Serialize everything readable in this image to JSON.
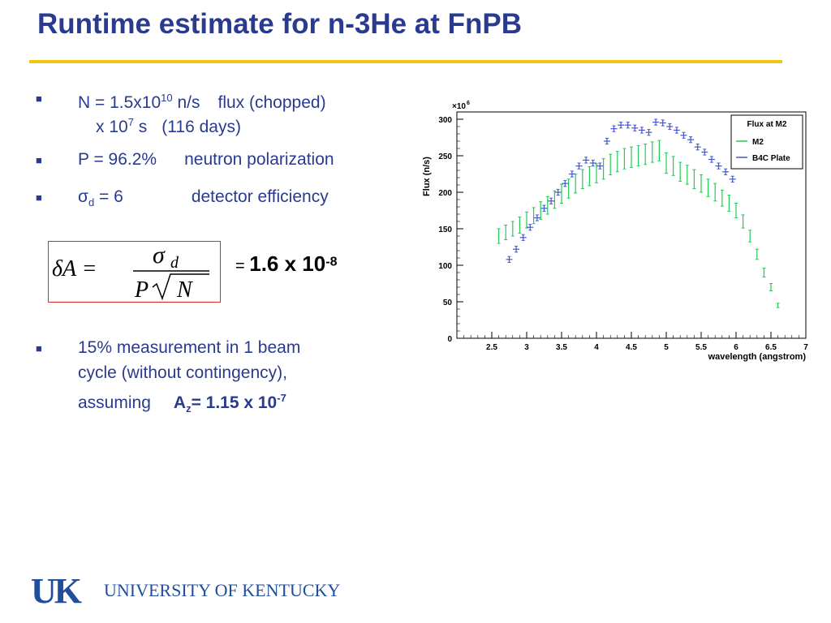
{
  "slide": {
    "title": "Runtime estimate for n-3He at FnPB"
  },
  "bullets": {
    "n_line1_prefix": "N = 1.5x10",
    "n_line1_exp": "10",
    "n_line1_suffix": " n/s",
    "n_line1_desc": "flux (chopped)",
    "n_line2_prefix": "x 10",
    "n_line2_exp": "7",
    "n_line2_suffix": " s",
    "n_line2_desc": "(116 days)",
    "p_value": "P = 96.2%",
    "p_desc": "neutron polarization",
    "sigma_symbol": "σ",
    "sigma_sub": "d",
    "sigma_value": " = 6",
    "sigma_desc": "detector efficiency",
    "measure_line1": "15% measurement in 1 beam",
    "measure_line2": "cycle (without contingency),",
    "measure_line3": "assuming",
    "az_prefix": "A",
    "az_sub": "z",
    "az_value": "= 1.15 x 10",
    "az_exp": "-7",
    "bullet_glyph": "■"
  },
  "formula": {
    "lhs": "δA =",
    "numerator": "σ",
    "numerator_sub": "d",
    "denominator_p": "P",
    "denominator_n": "N",
    "result_eq": "= ",
    "result_num": "1.6 x 10",
    "result_exp": "-8"
  },
  "footer": {
    "logo_mark": "UK",
    "institution": "UNIVERSITY OF KENTUCKY"
  },
  "chart_data": {
    "type": "scatter",
    "title": "",
    "xlabel": "wavelength (angstrom)",
    "ylabel": "Flux (n/s)",
    "y_multiplier": "×10",
    "y_multiplier_exp": "6",
    "xlim": [
      2,
      7
    ],
    "ylim": [
      0,
      310
    ],
    "x_ticks": [
      2.5,
      3,
      3.5,
      4,
      4.5,
      5,
      5.5,
      6,
      6.5,
      7
    ],
    "y_ticks": [
      0,
      50,
      100,
      150,
      200,
      250,
      300
    ],
    "legend": {
      "title": "Flux at M2",
      "placement": "top-right"
    },
    "grid": false,
    "series": [
      {
        "name": "M2",
        "color": "#22cc55",
        "x": [
          2.6,
          2.7,
          2.8,
          2.9,
          3.0,
          3.1,
          3.2,
          3.3,
          3.4,
          3.5,
          3.6,
          3.7,
          3.8,
          3.9,
          4.0,
          4.1,
          4.2,
          4.3,
          4.4,
          4.5,
          4.6,
          4.7,
          4.8,
          4.9,
          5.0,
          5.1,
          5.2,
          5.3,
          5.4,
          5.5,
          5.6,
          5.7,
          5.8,
          5.9,
          6.0,
          6.1,
          6.2,
          6.3,
          6.4,
          6.5,
          6.6
        ],
        "y": [
          140,
          145,
          150,
          155,
          162,
          168,
          175,
          182,
          190,
          198,
          205,
          212,
          218,
          222,
          226,
          232,
          238,
          242,
          246,
          248,
          250,
          252,
          255,
          257,
          240,
          236,
          228,
          224,
          218,
          212,
          206,
          200,
          192,
          185,
          175,
          160,
          140,
          115,
          90,
          70,
          45
        ],
        "err": [
          10,
          10,
          10,
          11,
          11,
          11,
          12,
          12,
          12,
          13,
          13,
          13,
          13,
          13,
          13,
          14,
          14,
          14,
          14,
          14,
          14,
          14,
          14,
          14,
          14,
          13,
          13,
          13,
          13,
          12,
          12,
          12,
          11,
          11,
          10,
          9,
          8,
          7,
          6,
          5,
          3
        ]
      },
      {
        "name": "B4C Plate",
        "color": "#4455cc",
        "x": [
          2.75,
          2.85,
          2.95,
          3.05,
          3.15,
          3.25,
          3.35,
          3.45,
          3.55,
          3.65,
          3.75,
          3.85,
          3.95,
          4.05,
          4.15,
          4.25,
          4.35,
          4.45,
          4.55,
          4.65,
          4.75,
          4.85,
          4.95,
          5.05,
          5.15,
          5.25,
          5.35,
          5.45,
          5.55,
          5.65,
          5.75,
          5.85,
          5.95
        ],
        "y": [
          108,
          122,
          138,
          152,
          165,
          178,
          188,
          200,
          212,
          225,
          236,
          244,
          240,
          236,
          270,
          287,
          292,
          292,
          288,
          285,
          282,
          296,
          295,
          290,
          285,
          278,
          272,
          262,
          255,
          245,
          236,
          228,
          218
        ],
        "err": [
          4,
          4,
          4,
          4,
          4,
          4,
          4,
          4,
          4,
          4,
          4,
          4,
          4,
          4,
          4,
          4,
          4,
          4,
          4,
          4,
          4,
          4,
          4,
          4,
          4,
          4,
          4,
          4,
          4,
          4,
          4,
          4,
          4
        ]
      }
    ]
  }
}
